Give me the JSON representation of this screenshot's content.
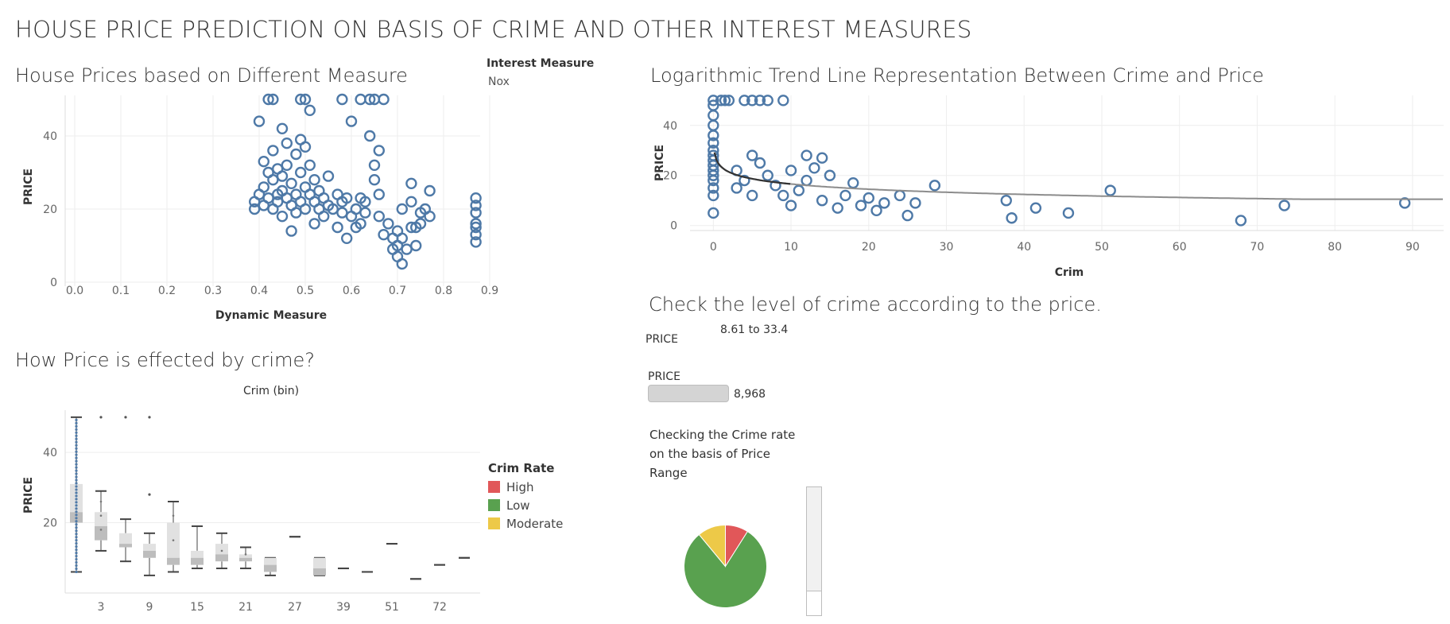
{
  "dashboard": {
    "title": "HOUSE PRICE PREDICTION ON BASIS OF CRIME AND OTHER INTEREST MEASURES"
  },
  "sheet1": {
    "title": "House Prices based on Different Measure",
    "interest_measure_label": "Interest Measure",
    "interest_measure_value": "Nox"
  },
  "sheet2": {
    "title": "Logarithmic Trend Line Representation Between Crime and Price"
  },
  "sheet3": {
    "title": "How Price is effected by crime?",
    "legend_title": "Crim Rate",
    "legend": [
      {
        "label": "High",
        "color": "#e15759"
      },
      {
        "label": "Low",
        "color": "#59a14f"
      },
      {
        "label": "Moderate",
        "color": "#edc948"
      }
    ]
  },
  "sheet4": {
    "title": "Check the level of crime according to the price.",
    "filter1_label": "PRICE",
    "filter1_value": "8.61 to 33.4",
    "filter2_label": "PRICE",
    "filter2_value": "8,968",
    "caption": [
      "Checking the Crime rate",
      "on the basis of Price",
      "Range"
    ]
  },
  "chart_data": [
    {
      "type": "scatter",
      "title": "House Prices based on Different Measure",
      "xlabel": "Dynamic Measure",
      "ylabel": "PRICE",
      "xlim": [
        0,
        0.9
      ],
      "ylim": [
        0,
        50
      ],
      "xticks": [
        "0.0",
        "0.1",
        "0.2",
        "0.3",
        "0.4",
        "0.5",
        "0.6",
        "0.7",
        "0.8",
        "0.9"
      ],
      "yticks": [
        "0",
        "20",
        "40"
      ],
      "color": "#4e79a7",
      "points": [
        [
          0.39,
          20
        ],
        [
          0.39,
          22
        ],
        [
          0.4,
          44
        ],
        [
          0.4,
          24
        ],
        [
          0.41,
          26
        ],
        [
          0.41,
          33
        ],
        [
          0.41,
          21
        ],
        [
          0.42,
          50
        ],
        [
          0.42,
          23
        ],
        [
          0.42,
          30
        ],
        [
          0.43,
          50
        ],
        [
          0.43,
          36
        ],
        [
          0.43,
          28
        ],
        [
          0.43,
          20
        ],
        [
          0.44,
          24
        ],
        [
          0.44,
          31
        ],
        [
          0.44,
          22
        ],
        [
          0.45,
          29
        ],
        [
          0.45,
          42
        ],
        [
          0.45,
          25
        ],
        [
          0.45,
          18
        ],
        [
          0.46,
          38
        ],
        [
          0.46,
          32
        ],
        [
          0.46,
          23
        ],
        [
          0.47,
          27
        ],
        [
          0.47,
          21
        ],
        [
          0.47,
          14
        ],
        [
          0.48,
          35
        ],
        [
          0.48,
          24
        ],
        [
          0.48,
          19
        ],
        [
          0.49,
          50
        ],
        [
          0.49,
          39
        ],
        [
          0.49,
          30
        ],
        [
          0.49,
          22
        ],
        [
          0.5,
          50
        ],
        [
          0.5,
          37
        ],
        [
          0.5,
          26
        ],
        [
          0.5,
          20
        ],
        [
          0.51,
          47
        ],
        [
          0.51,
          32
        ],
        [
          0.51,
          24
        ],
        [
          0.52,
          28
        ],
        [
          0.52,
          22
        ],
        [
          0.52,
          16
        ],
        [
          0.53,
          25
        ],
        [
          0.53,
          20
        ],
        [
          0.54,
          23
        ],
        [
          0.54,
          18
        ],
        [
          0.55,
          21
        ],
        [
          0.55,
          29
        ],
        [
          0.56,
          20
        ],
        [
          0.57,
          24
        ],
        [
          0.57,
          15
        ],
        [
          0.58,
          50
        ],
        [
          0.58,
          22
        ],
        [
          0.58,
          19
        ],
        [
          0.59,
          12
        ],
        [
          0.59,
          23
        ],
        [
          0.6,
          44
        ],
        [
          0.6,
          18
        ],
        [
          0.61,
          15
        ],
        [
          0.61,
          20
        ],
        [
          0.62,
          50
        ],
        [
          0.62,
          23
        ],
        [
          0.62,
          16
        ],
        [
          0.63,
          22
        ],
        [
          0.63,
          19
        ],
        [
          0.64,
          50
        ],
        [
          0.64,
          40
        ],
        [
          0.65,
          50
        ],
        [
          0.65,
          32
        ],
        [
          0.65,
          28
        ],
        [
          0.66,
          36
        ],
        [
          0.66,
          18
        ],
        [
          0.66,
          24
        ],
        [
          0.67,
          50
        ],
        [
          0.67,
          13
        ],
        [
          0.68,
          16
        ],
        [
          0.69,
          12
        ],
        [
          0.69,
          9
        ],
        [
          0.7,
          14
        ],
        [
          0.7,
          10
        ],
        [
          0.7,
          7
        ],
        [
          0.71,
          20
        ],
        [
          0.71,
          12
        ],
        [
          0.71,
          5
        ],
        [
          0.72,
          9
        ],
        [
          0.73,
          15
        ],
        [
          0.73,
          22
        ],
        [
          0.73,
          27
        ],
        [
          0.74,
          15
        ],
        [
          0.74,
          10
        ],
        [
          0.75,
          16
        ],
        [
          0.75,
          19
        ],
        [
          0.76,
          20
        ],
        [
          0.77,
          25
        ],
        [
          0.77,
          18
        ],
        [
          0.87,
          23
        ],
        [
          0.87,
          19
        ],
        [
          0.87,
          16
        ],
        [
          0.87,
          13
        ],
        [
          0.87,
          11
        ],
        [
          0.87,
          21
        ],
        [
          0.87,
          15
        ]
      ]
    },
    {
      "type": "scatter",
      "title": "Logarithmic Trend Line Representation Between Crime and Price",
      "xlabel": "Crim",
      "ylabel": "PRICE",
      "xlim": [
        -3,
        94
      ],
      "ylim": [
        -2,
        52
      ],
      "xticks": [
        "0",
        "10",
        "20",
        "30",
        "40",
        "50",
        "60",
        "70",
        "80",
        "90"
      ],
      "yticks": [
        "0",
        "20",
        "40"
      ],
      "color": "#4e79a7",
      "trend": "logarithmic",
      "points": [
        [
          0,
          5
        ],
        [
          0,
          12
        ],
        [
          0,
          15
        ],
        [
          0,
          18
        ],
        [
          0,
          20
        ],
        [
          0,
          22
        ],
        [
          0,
          24
        ],
        [
          0,
          26
        ],
        [
          0,
          28
        ],
        [
          0,
          30
        ],
        [
          0,
          33
        ],
        [
          0,
          36
        ],
        [
          0,
          40
        ],
        [
          0,
          44
        ],
        [
          0,
          48
        ],
        [
          0,
          50
        ],
        [
          1,
          50
        ],
        [
          1.5,
          50
        ],
        [
          2,
          50
        ],
        [
          3,
          22
        ],
        [
          3,
          15
        ],
        [
          4,
          50
        ],
        [
          4,
          18
        ],
        [
          5,
          28
        ],
        [
          5,
          12
        ],
        [
          5,
          50
        ],
        [
          6,
          50
        ],
        [
          6,
          25
        ],
        [
          7,
          20
        ],
        [
          7,
          50
        ],
        [
          8,
          16
        ],
        [
          9,
          50
        ],
        [
          9,
          12
        ],
        [
          10,
          22
        ],
        [
          10,
          8
        ],
        [
          11,
          14
        ],
        [
          12,
          28
        ],
        [
          12,
          18
        ],
        [
          13,
          23
        ],
        [
          14,
          27
        ],
        [
          14,
          10
        ],
        [
          15,
          20
        ],
        [
          16,
          7
        ],
        [
          17,
          12
        ],
        [
          18,
          17
        ],
        [
          19,
          8
        ],
        [
          20,
          11
        ],
        [
          21,
          6
        ],
        [
          22,
          9
        ],
        [
          24,
          12
        ],
        [
          25,
          4
        ],
        [
          26,
          9
        ],
        [
          28.5,
          16
        ],
        [
          37.7,
          10
        ],
        [
          38.4,
          3
        ],
        [
          41.5,
          7
        ],
        [
          45.7,
          5
        ],
        [
          51.1,
          14
        ],
        [
          67.9,
          2
        ],
        [
          73.5,
          8
        ],
        [
          89,
          9
        ]
      ]
    },
    {
      "type": "box",
      "title": "How Price is effected by crime?",
      "top_label": "Crim (bin)",
      "ylabel": "PRICE",
      "ylim": [
        0,
        52
      ],
      "xticks": [
        "3",
        "9",
        "15",
        "21",
        "27",
        "39",
        "51",
        "72"
      ],
      "yticks": [
        "20",
        "40"
      ],
      "boxes": [
        {
          "bin": 0,
          "min": 6,
          "q1": 20,
          "median": 23,
          "q3": 31,
          "max": 50
        },
        {
          "bin": 3,
          "min": 12,
          "q1": 15,
          "median": 19,
          "q3": 23,
          "max": 29
        },
        {
          "bin": 6,
          "min": 9,
          "q1": 13,
          "median": 14,
          "q3": 17,
          "max": 21
        },
        {
          "bin": 9,
          "min": 5,
          "q1": 10,
          "median": 12,
          "q3": 14,
          "max": 17
        },
        {
          "bin": 12,
          "min": 6,
          "q1": 8,
          "median": 10,
          "q3": 20,
          "max": 26
        },
        {
          "bin": 15,
          "min": 7,
          "q1": 8,
          "median": 10,
          "q3": 12,
          "max": 19
        },
        {
          "bin": 18,
          "min": 7,
          "q1": 9,
          "median": 11,
          "q3": 14,
          "max": 17
        },
        {
          "bin": 21,
          "min": 7,
          "q1": 9,
          "median": 10,
          "q3": 11,
          "max": 13
        },
        {
          "bin": 24,
          "min": 5,
          "q1": 6,
          "median": 8,
          "q3": 10,
          "max": 10
        },
        {
          "bin": 27,
          "min": 16,
          "q1": 16,
          "median": 16,
          "q3": 16,
          "max": 16
        },
        {
          "bin": 33,
          "min": 5,
          "q1": 5,
          "median": 7,
          "q3": 10,
          "max": 10
        },
        {
          "bin": 39,
          "min": 7,
          "q1": 7,
          "median": 7,
          "q3": 7,
          "max": 7
        },
        {
          "bin": 45,
          "min": 6,
          "q1": 6,
          "median": 6,
          "q3": 6,
          "max": 6
        },
        {
          "bin": 51,
          "min": 14,
          "q1": 14,
          "median": 14,
          "q3": 14,
          "max": 14
        },
        {
          "bin": 63,
          "min": 4,
          "q1": 4,
          "median": 4,
          "q3": 4,
          "max": 4
        },
        {
          "bin": 72,
          "min": 8,
          "q1": 8,
          "median": 8,
          "q3": 8,
          "max": 8
        },
        {
          "bin": 87,
          "min": 10,
          "q1": 10,
          "median": 10,
          "q3": 10,
          "max": 10
        }
      ],
      "outliers": [
        [
          3,
          50
        ],
        [
          6,
          50
        ],
        [
          9,
          50
        ],
        [
          9,
          28
        ]
      ]
    },
    {
      "type": "pie",
      "slices": [
        {
          "label": "High",
          "value": 9,
          "color": "#e15759"
        },
        {
          "label": "Low",
          "value": 80,
          "color": "#59a14f"
        },
        {
          "label": "Moderate",
          "value": 11,
          "color": "#edc948"
        }
      ]
    }
  ]
}
